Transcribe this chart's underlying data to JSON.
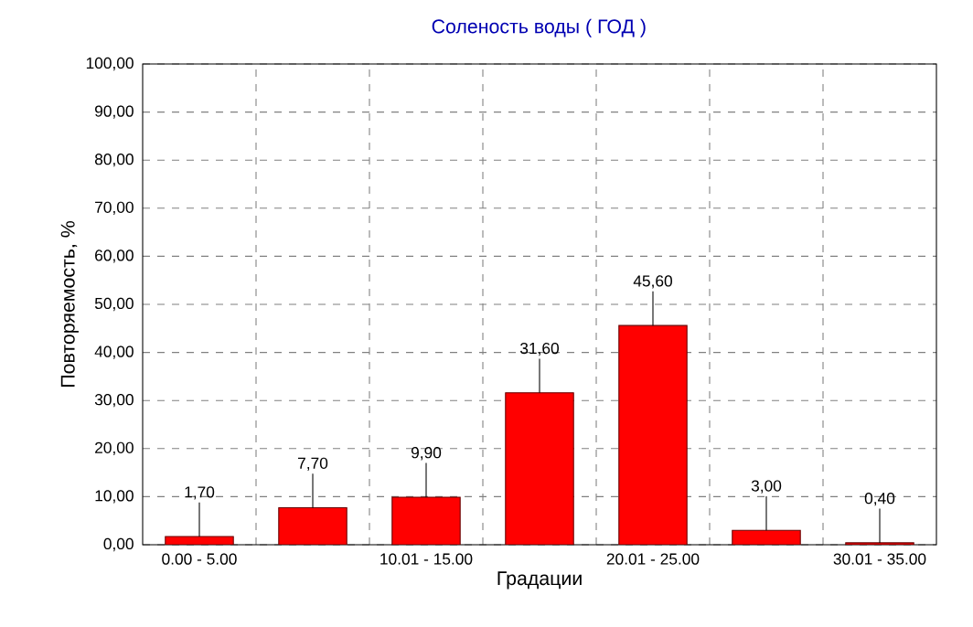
{
  "chart_data": {
    "type": "bar",
    "title": "Соленость воды    ( ГОД )",
    "xlabel": "Градации",
    "ylabel": "Повторяемость, %",
    "categories": [
      "0.00 - 5.00",
      null,
      "10.01 - 15.00",
      null,
      "20.01 - 25.00",
      null,
      "30.01 - 35.00"
    ],
    "values": [
      1.7,
      7.7,
      9.9,
      31.6,
      45.6,
      3.0,
      0.4
    ],
    "value_labels": [
      "1,70",
      "7,70",
      "9,90",
      "31,60",
      "45,60",
      "3,00",
      "0,40"
    ],
    "color": "#ff0000",
    "grid": true,
    "ylim": [
      0,
      100
    ],
    "yticks": [
      {
        "value": 0,
        "label": "0,00"
      },
      {
        "value": 10,
        "label": "10,00"
      },
      {
        "value": 20,
        "label": "20,00"
      },
      {
        "value": 30,
        "label": "30,00"
      },
      {
        "value": 40,
        "label": "40,00"
      },
      {
        "value": 50,
        "label": "50,00"
      },
      {
        "value": 60,
        "label": "60,00"
      },
      {
        "value": 70,
        "label": "70,00"
      },
      {
        "value": 80,
        "label": "80,00"
      },
      {
        "value": 90,
        "label": "90,00"
      },
      {
        "value": 100,
        "label": "100,00"
      }
    ]
  }
}
